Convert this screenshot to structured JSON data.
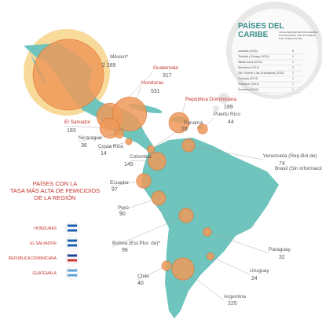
{
  "countries": {
    "names": [
      "México*",
      "Guatemala",
      "Honduras",
      "República Dominicana",
      "El Salvador",
      "Puerto Rico",
      "Panamá",
      "Nicaragua",
      "Costa Rica",
      "Colombia",
      "Venezuela (Rep.Bol.de)",
      "Brasil (Sin información oficial)",
      "Ecuador",
      "Perú",
      "Bolivia (Est.Plur. de)*",
      "Paraguay",
      "Uruguay",
      "Chile",
      "Argentina"
    ],
    "values": [
      2289,
      317,
      531,
      189,
      183,
      44,
      26,
      36,
      14,
      145,
      74,
      null,
      97,
      90,
      96,
      32,
      24,
      40,
      225
    ],
    "value_labels": [
      "2 289",
      "317",
      "531",
      "189",
      "183",
      "44",
      "26",
      "36",
      "14",
      "145",
      "74",
      null,
      "97",
      "90",
      "96",
      "32",
      "24",
      "40",
      "225"
    ]
  },
  "caribbean": {
    "title": [
      "PAÍSES DEL",
      "CARIBE"
    ],
    "note": [
      "CIFRA DE MUERTES DE MUJERES",
      "OCASIONADAS POR SU PAREJA",
      "O EX PAREJA ÍNTIMA"
    ],
    "rows": [
      [
        "Jamaica (2015)",
        8
      ],
      [
        "Trinidad y Tobago (2015)",
        1
      ],
      [
        "Santa Lucía (2015)",
        1
      ],
      [
        "Barbados (2014)",
        3
      ],
      [
        "San Vicente y las Granadinas (2015)",
        1
      ],
      [
        "Granada (2013)",
        1
      ],
      [
        "Suriname (2014)",
        7
      ],
      [
        "Dominica (2015)",
        1
      ]
    ]
  },
  "legend": {
    "title": [
      "PAÍSES CON LA",
      "TASA MÁS ALTA DE FEMICIDIOS",
      "DE LA REGIÓN"
    ],
    "items": [
      "HONDURAS",
      "EL SALVADOR",
      "REPÚBLICA DOMINICANA",
      "GUATEMALA"
    ]
  }
}
